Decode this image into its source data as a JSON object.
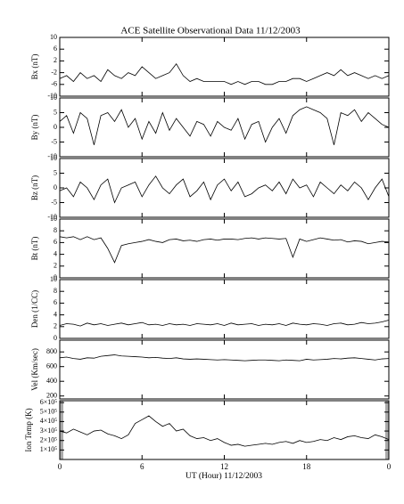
{
  "chart_data": {
    "type": "line",
    "title": "ACE Satellite Observational Data   11/12/2003",
    "xlabel": "UT (Hour)  11/12/2003",
    "xlim": [
      0,
      24
    ],
    "xticks": [
      0,
      6,
      12,
      18,
      {
        "value": 24,
        "label": "0"
      }
    ],
    "x": [
      0,
      0.5,
      1,
      1.5,
      2,
      2.5,
      3,
      3.5,
      4,
      4.5,
      5,
      5.5,
      6,
      6.5,
      7,
      7.5,
      8,
      8.5,
      9,
      9.5,
      10,
      10.5,
      11,
      11.5,
      12,
      12.5,
      13,
      13.5,
      14,
      14.5,
      15,
      15.5,
      16,
      16.5,
      17,
      17.5,
      18,
      18.5,
      19,
      19.5,
      20,
      20.5,
      21,
      21.5,
      22,
      22.5,
      23,
      23.5,
      24
    ],
    "panels": [
      {
        "ylabel": "Bx (nT)",
        "ylim": [
          -10,
          10
        ],
        "yticks": [
          -10,
          -6,
          -2,
          2,
          6,
          10
        ],
        "values": [
          -4,
          -3,
          -5,
          -2,
          -4,
          -3,
          -5,
          -1,
          -3,
          -4,
          -2,
          -3,
          0,
          -2,
          -4,
          -3,
          -2,
          1,
          -3,
          -5,
          -4,
          -5,
          -5,
          -5,
          -5,
          -6,
          -5,
          -6,
          -5,
          -5,
          -6,
          -6,
          -5,
          -5,
          -4,
          -4,
          -5,
          -4,
          -3,
          -2,
          -3,
          -1,
          -3,
          -2,
          -3,
          -4,
          -3,
          -4,
          -3
        ]
      },
      {
        "ylabel": "By (nT)",
        "ylim": [
          -10,
          10
        ],
        "yticks": [
          -10,
          -5,
          0,
          5,
          10
        ],
        "values": [
          2,
          4,
          -2,
          5,
          3,
          -6,
          4,
          5,
          2,
          6,
          0,
          3,
          -4,
          2,
          -2,
          5,
          -1,
          3,
          0,
          -3,
          2,
          1,
          -3,
          2,
          0,
          -1,
          3,
          -4,
          1,
          2,
          -5,
          0,
          3,
          -2,
          4,
          6,
          7,
          6,
          5,
          3,
          -6,
          5,
          4,
          6,
          2,
          5,
          3,
          1,
          0
        ]
      },
      {
        "ylabel": "Bz (nT)",
        "ylim": [
          -10,
          10
        ],
        "yticks": [
          -10,
          -5,
          0,
          5,
          10
        ],
        "values": [
          -1,
          0,
          -3,
          2,
          0,
          -4,
          1,
          3,
          -5,
          0,
          1,
          2,
          -3,
          1,
          4,
          0,
          -2,
          1,
          3,
          -3,
          -1,
          2,
          -4,
          1,
          3,
          -1,
          2,
          -3,
          -2,
          0,
          1,
          -1,
          2,
          -2,
          3,
          0,
          1,
          -3,
          2,
          0,
          -2,
          1,
          -1,
          2,
          0,
          -4,
          0,
          3,
          -3
        ]
      },
      {
        "ylabel": "Bt (nT)",
        "ylim": [
          0,
          10
        ],
        "yticks": [
          0,
          2,
          4,
          6,
          8,
          10
        ],
        "values": [
          7,
          6.8,
          7,
          6.5,
          7,
          6.5,
          6.8,
          5,
          2.6,
          5.5,
          5.8,
          6,
          6.2,
          6.5,
          6.2,
          6,
          6.5,
          6.6,
          6.3,
          6.4,
          6.2,
          6.5,
          6.6,
          6.4,
          6.6,
          6.6,
          6.5,
          6.7,
          6.8,
          6.6,
          6.8,
          6.7,
          6.6,
          6.7,
          3.5,
          6.6,
          6.2,
          6.5,
          6.8,
          6.6,
          6.4,
          6.5,
          6.1,
          6.3,
          6.2,
          5.8,
          6,
          6.2,
          6.1
        ]
      },
      {
        "ylabel": "Den (1/CC)",
        "ylim": [
          0,
          10
        ],
        "yticks": [
          0,
          2,
          4,
          6,
          8,
          10
        ],
        "values": [
          2.2,
          2.5,
          2.4,
          2.1,
          2.6,
          2.3,
          2.5,
          2.2,
          2.4,
          2.6,
          2.3,
          2.5,
          2.7,
          2.3,
          2.4,
          2.2,
          2.5,
          2.3,
          2.4,
          2.2,
          2.5,
          2.4,
          2.3,
          2.5,
          2.2,
          2.6,
          2.3,
          2.4,
          2.5,
          2.2,
          2.4,
          2.3,
          2.5,
          2.2,
          2.6,
          2.4,
          2.3,
          2.5,
          2.4,
          2.2,
          2.5,
          2.6,
          2.3,
          2.4,
          2.7,
          2.5,
          2.6,
          2.8,
          3.1
        ]
      },
      {
        "ylabel": "Vel (Km/sec)",
        "ylim": [
          160,
          960
        ],
        "yticks": [
          200,
          400,
          600,
          800
        ],
        "values": [
          720,
          730,
          710,
          700,
          720,
          715,
          740,
          750,
          760,
          745,
          740,
          735,
          730,
          720,
          725,
          715,
          710,
          720,
          705,
          700,
          705,
          700,
          695,
          690,
          695,
          690,
          685,
          680,
          685,
          690,
          690,
          685,
          680,
          690,
          685,
          680,
          700,
          690,
          695,
          700,
          710,
          705,
          715,
          720,
          710,
          700,
          690,
          705,
          710
        ]
      },
      {
        "ylabel": "Ion Temp (K)",
        "ylim": [
          0,
          620000
        ],
        "yticks": [
          {
            "value": 100000,
            "label": "1×10⁵"
          },
          {
            "value": 200000,
            "label": "2×10⁵"
          },
          {
            "value": 300000,
            "label": "3×10⁵"
          },
          {
            "value": 400000,
            "label": "4×10⁵"
          },
          {
            "value": 500000,
            "label": "5×10⁵"
          },
          {
            "value": 600000,
            "label": "6×10⁵"
          }
        ],
        "values": [
          300000,
          280000,
          320000,
          290000,
          260000,
          300000,
          310000,
          270000,
          250000,
          220000,
          260000,
          380000,
          420000,
          460000,
          400000,
          350000,
          380000,
          300000,
          320000,
          250000,
          220000,
          230000,
          200000,
          220000,
          180000,
          150000,
          160000,
          140000,
          150000,
          160000,
          170000,
          160000,
          180000,
          190000,
          170000,
          200000,
          180000,
          190000,
          210000,
          200000,
          230000,
          210000,
          240000,
          250000,
          230000,
          220000,
          260000,
          240000,
          210000
        ]
      }
    ]
  }
}
